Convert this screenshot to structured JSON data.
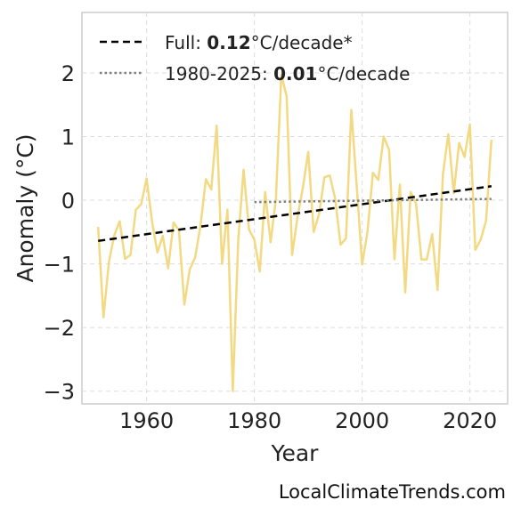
{
  "chart_data": {
    "type": "line",
    "xlabel": "Year",
    "ylabel": "Anomaly (°C)",
    "xlim": [
      1948,
      2027
    ],
    "ylim": [
      -3.2,
      2.95
    ],
    "xticks": [
      1960,
      1980,
      2000,
      2020
    ],
    "yticks": [
      -3,
      -2,
      -1,
      0,
      1,
      2
    ],
    "ytick_labels": [
      "−3",
      "−2",
      "−1",
      "0",
      "1",
      "2"
    ],
    "grid": true,
    "legend_position": "top-left",
    "series": [
      {
        "color": "#f2d77a",
        "x": [
          1951,
          1952,
          1953,
          1954,
          1955,
          1956,
          1957,
          1958,
          1959,
          1960,
          1961,
          1962,
          1963,
          1964,
          1965,
          1966,
          1967,
          1968,
          1969,
          1970,
          1971,
          1972,
          1973,
          1974,
          1975,
          1976,
          1977,
          1978,
          1979,
          1980,
          1981,
          1982,
          1983,
          1984,
          1985,
          1986,
          1987,
          1988,
          1989,
          1990,
          1991,
          1992,
          1993,
          1994,
          1995,
          1996,
          1997,
          1998,
          1999,
          2000,
          2001,
          2002,
          2003,
          2004,
          2005,
          2006,
          2007,
          2008,
          2009,
          2010,
          2011,
          2012,
          2013,
          2014,
          2015,
          2016,
          2017,
          2018,
          2019,
          2020,
          2021,
          2022,
          2023,
          2024
        ],
        "y": [
          -0.42,
          -1.84,
          -0.97,
          -0.55,
          -0.33,
          -0.92,
          -0.86,
          -0.15,
          -0.06,
          0.34,
          -0.33,
          -0.82,
          -0.56,
          -1.07,
          -0.35,
          -0.47,
          -1.64,
          -1.09,
          -0.9,
          -0.4,
          0.33,
          0.17,
          1.17,
          -1.0,
          -0.15,
          -3.0,
          -0.63,
          0.48,
          -0.46,
          -0.62,
          -1.12,
          0.13,
          -0.66,
          0.02,
          1.97,
          1.63,
          -0.86,
          -0.27,
          0.2,
          0.76,
          -0.5,
          -0.22,
          0.36,
          0.39,
          0.02,
          -0.7,
          -0.6,
          1.42,
          0.21,
          -1.01,
          -0.49,
          0.43,
          0.32,
          1.0,
          0.79,
          -0.93,
          0.25,
          -1.45,
          0.13,
          -0.05,
          -0.93,
          -0.93,
          -0.53,
          -1.41,
          0.42,
          1.04,
          0.11,
          0.9,
          0.68,
          1.19,
          -0.78,
          -0.62,
          -0.32,
          0.95
        ]
      },
      {
        "color": "#000000",
        "x": [
          1951,
          2024
        ],
        "y": [
          -0.64,
          0.22
        ]
      },
      {
        "color": "#808080",
        "x": [
          1980,
          2024
        ],
        "y": [
          -0.03,
          0.02
        ]
      }
    ],
    "legend": [
      {
        "prefix": "Full: ",
        "value": "0.12",
        "suffix": "°C/decade*",
        "style": "dashed",
        "color": "#000000"
      },
      {
        "prefix": "1980-2025: ",
        "value": "0.01",
        "suffix": "°C/decade",
        "style": "dotted",
        "color": "#808080"
      }
    ]
  },
  "watermark": "LocalClimateTrends.com"
}
